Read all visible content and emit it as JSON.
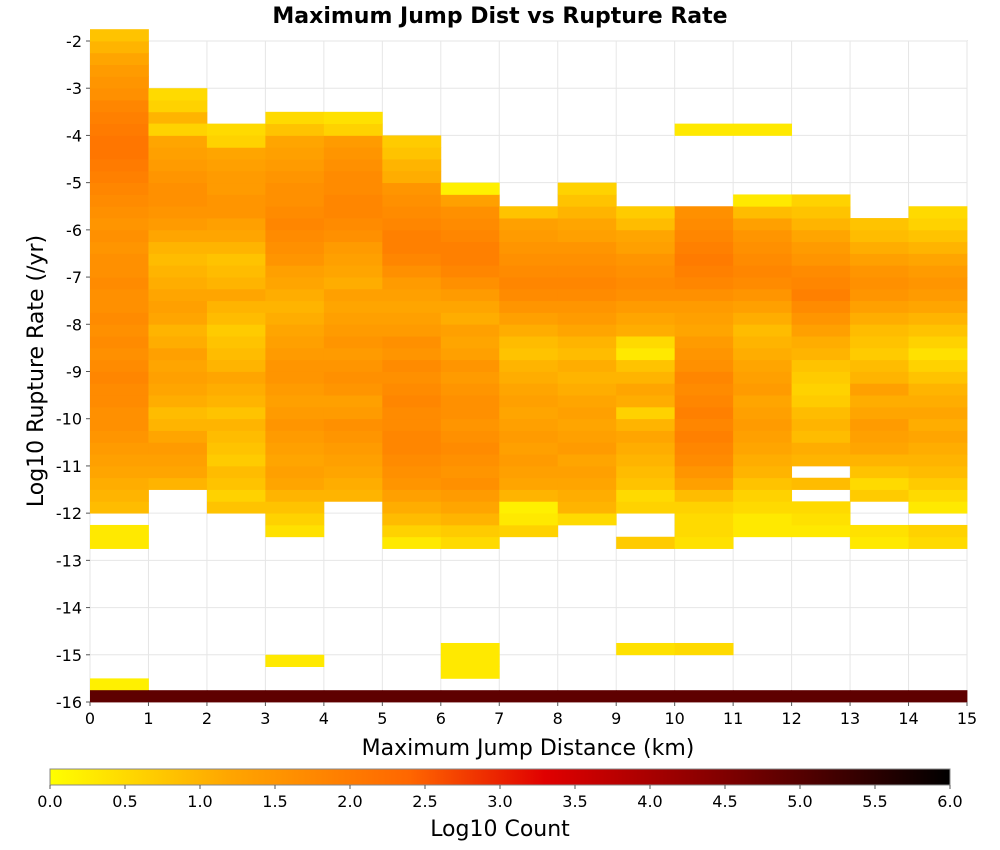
{
  "chart_data": {
    "type": "heatmap",
    "title": "Maximum Jump Dist vs Rupture Rate",
    "xlabel": "Maximum Jump Distance (km)",
    "ylabel": "Log10 Rupture Rate (/yr)",
    "xlim": [
      0,
      15
    ],
    "ylim": [
      -16,
      -2
    ],
    "x_bin_width": 1,
    "y_bin_height": 0.25,
    "x_ticks": [
      "0",
      "1",
      "2",
      "3",
      "4",
      "5",
      "6",
      "7",
      "8",
      "9",
      "10",
      "11",
      "12",
      "13",
      "14",
      "15"
    ],
    "y_ticks": [
      "-2",
      "-3",
      "-4",
      "-5",
      "-6",
      "-7",
      "-8",
      "-9",
      "-10",
      "-11",
      "-12",
      "-13",
      "-14",
      "-15",
      "-16"
    ],
    "grid": true,
    "colorbar": {
      "label": "Log10 Count",
      "min": 0,
      "max": 6,
      "ticks": [
        "0.0",
        "0.5",
        "1.0",
        "1.5",
        "2.0",
        "2.5",
        "3.0",
        "3.5",
        "4.0",
        "4.5",
        "5.0",
        "5.5",
        "6.0"
      ],
      "colors": [
        "#ffff00",
        "#ffa500",
        "#ff6600",
        "#e00000",
        "#800000",
        "#000000"
      ],
      "placement": "bottom"
    },
    "columns": [
      {
        "x": 0,
        "start": -12.0,
        "values": [
          0.9,
          1.0,
          1.1,
          1.2,
          1.3,
          1.4,
          1.5,
          1.6,
          1.6,
          1.7,
          1.7,
          1.8,
          1.7,
          1.6,
          1.7,
          1.6,
          1.7,
          1.6,
          1.6,
          1.7,
          1.6,
          1.6,
          1.5,
          1.6,
          1.5,
          1.6,
          1.7,
          1.8,
          1.9,
          2.0,
          2.1,
          2.1,
          2.0,
          1.9,
          1.8,
          1.6,
          1.5,
          1.4,
          1.2,
          1.0,
          0.8
        ],
        "extra": [
          {
            "y": -12.5,
            "v": 0.3
          },
          {
            "y": -12.75,
            "v": 0.3
          },
          {
            "y": -15.75,
            "v": 0.2
          }
        ]
      },
      {
        "x": 1,
        "start": -11.5,
        "values": [
          1.0,
          1.2,
          1.3,
          1.4,
          1.2,
          1.0,
          0.9,
          1.1,
          1.2,
          1.3,
          1.2,
          1.3,
          1.1,
          1.0,
          1.2,
          1.3,
          1.2,
          1.1,
          1.0,
          0.9,
          1.0,
          1.2,
          1.4,
          1.5,
          1.6,
          1.6,
          1.5,
          1.4,
          1.3,
          1.2,
          1.1,
          1.0,
          0.6,
          0.5
        ],
        "extra": [
          {
            "y": -4.0,
            "v": 0.6
          }
        ]
      },
      {
        "x": 2,
        "start": -12.0,
        "values": [
          0.8,
          0.6,
          0.8,
          0.9,
          0.7,
          0.8,
          0.9,
          1.0,
          0.8,
          1.0,
          1.1,
          1.2,
          1.0,
          0.9,
          0.8,
          0.7,
          0.9,
          1.0,
          1.2,
          1.0,
          0.9,
          0.8,
          1.0,
          1.2,
          1.3,
          1.5,
          1.5,
          1.4,
          1.4,
          1.3,
          1.2,
          0.6,
          0.5
        ],
        "extra": [
          {
            "y": -4.25,
            "v": 0.6
          }
        ]
      },
      {
        "x": 3,
        "start": -12.5,
        "values": [
          0.4,
          0.6,
          0.8,
          1.0,
          1.2,
          1.3,
          1.2,
          1.3,
          1.4,
          1.5,
          1.4,
          1.3,
          1.4,
          1.5,
          1.5,
          1.4,
          1.3,
          1.2,
          1.1,
          1.0,
          1.1,
          1.2,
          1.3,
          1.5,
          1.6,
          1.7,
          1.8,
          1.7,
          1.6,
          1.6,
          1.5,
          1.4,
          1.3,
          1.2,
          0.8,
          0.5
        ],
        "extra": [
          {
            "y": -15.25,
            "v": 0.3
          }
        ]
      },
      {
        "x": 4,
        "start": -11.75,
        "values": [
          1.0,
          1.1,
          1.2,
          1.3,
          1.4,
          1.5,
          1.6,
          1.4,
          1.3,
          1.5,
          1.6,
          1.5,
          1.4,
          1.5,
          1.4,
          1.3,
          1.2,
          1.3,
          1.1,
          1.2,
          1.3,
          1.4,
          1.6,
          1.7,
          1.8,
          1.8,
          1.7,
          1.7,
          1.6,
          1.5,
          1.4,
          0.6,
          0.4
        ],
        "extra": []
      },
      {
        "x": 5,
        "start": -12.75,
        "values": [
          0.3,
          0.6,
          0.9,
          1.1,
          1.3,
          1.5,
          1.6,
          1.7,
          1.8,
          1.8,
          1.7,
          1.7,
          1.8,
          1.7,
          1.6,
          1.7,
          1.5,
          1.6,
          1.4,
          1.3,
          1.2,
          1.3,
          1.4,
          1.6,
          1.8,
          1.9,
          1.9,
          1.8,
          1.7,
          1.6,
          1.5,
          1.1,
          1.0,
          0.8,
          0.7
        ],
        "extra": []
      },
      {
        "x": 6,
        "start": -12.75,
        "values": [
          0.5,
          0.7,
          1.0,
          1.2,
          1.4,
          1.6,
          1.5,
          1.6,
          1.7,
          1.6,
          1.5,
          1.6,
          1.6,
          1.5,
          1.4,
          1.5,
          1.3,
          1.2,
          1.3,
          1.1,
          1.2,
          1.4,
          1.6,
          1.8,
          1.9,
          1.9,
          1.8,
          1.7,
          1.6,
          1.3,
          0.2
        ],
        "extra": [
          {
            "y": -15.0,
            "v": 0.3
          },
          {
            "y": -15.25,
            "v": 0.3
          },
          {
            "y": -15.5,
            "v": 0.3
          }
        ]
      },
      {
        "x": 7,
        "start": -12.5,
        "values": [
          0.6,
          0.3,
          0.2,
          1.0,
          1.2,
          1.3,
          1.4,
          1.3,
          1.4,
          1.3,
          1.2,
          1.3,
          1.2,
          1.1,
          1.0,
          0.8,
          0.9,
          1.1,
          1.3,
          1.5,
          1.7,
          1.8,
          1.7,
          1.6,
          1.5,
          1.4,
          1.3,
          0.8
        ],
        "extra": []
      },
      {
        "x": 8,
        "start": -12.25,
        "values": [
          0.5,
          1.0,
          1.1,
          1.2,
          1.3,
          1.2,
          1.4,
          1.3,
          1.2,
          1.3,
          1.2,
          1.1,
          1.0,
          1.1,
          0.9,
          1.0,
          1.2,
          1.4,
          1.5,
          1.7,
          1.8,
          1.7,
          1.6,
          1.5,
          1.3,
          1.2,
          1.0,
          0.8,
          0.6
        ],
        "extra": []
      },
      {
        "x": 9,
        "start": -12.75,
        "values": [
          0.7,
          0.0,
          0.0,
          0.6,
          0.5,
          0.8,
          0.9,
          1.0,
          1.1,
          1.2,
          1.0,
          0.6,
          1.1,
          1.2,
          1.0,
          0.8,
          0.3,
          0.5,
          1.1,
          1.2,
          1.4,
          1.6,
          1.7,
          1.6,
          1.5,
          1.3,
          1.2,
          0.9,
          0.7
        ],
        "extra": [
          {
            "y": -15.0,
            "v": 0.4
          }
        ]
      },
      {
        "x": 10,
        "start": -12.75,
        "values": [
          0.4,
          0.5,
          0.5,
          0.6,
          0.9,
          1.3,
          1.5,
          1.7,
          1.8,
          1.9,
          1.8,
          1.9,
          1.8,
          1.7,
          1.8,
          1.6,
          1.5,
          1.4,
          1.2,
          1.3,
          1.4,
          1.6,
          1.8,
          1.9,
          2.0,
          1.9,
          1.8,
          1.7,
          1.6
        ],
        "extra": [
          {
            "y": -4.0,
            "v": 0.3
          },
          {
            "y": -15.0,
            "v": 0.5
          }
        ]
      },
      {
        "x": 11,
        "start": -12.5,
        "values": [
          0.3,
          0.3,
          0.5,
          0.6,
          0.8,
          1.0,
          1.1,
          1.2,
          1.3,
          1.4,
          1.3,
          1.2,
          1.4,
          1.3,
          1.2,
          1.1,
          1.0,
          0.9,
          1.1,
          1.3,
          1.5,
          1.7,
          1.8,
          1.7,
          1.6,
          1.5,
          1.3,
          0.9,
          0.3
        ],
        "extra": [
          {
            "y": -4.0,
            "v": 0.3
          }
        ]
      },
      {
        "x": 12,
        "start": -12.5,
        "values": [
          0.3,
          0.4,
          0.5,
          0.0,
          0.9,
          0.0,
          1.0,
          1.1,
          0.9,
          1.0,
          0.9,
          0.7,
          0.6,
          0.7,
          0.8,
          1.0,
          1.1,
          1.3,
          1.5,
          1.7,
          1.9,
          1.8,
          1.7,
          1.5,
          1.4,
          1.2,
          1.0,
          0.8,
          0.6
        ],
        "extra": []
      },
      {
        "x": 13,
        "start": -12.75,
        "values": [
          0.3,
          0.4,
          0.0,
          0.0,
          0.7,
          0.5,
          0.8,
          1.0,
          1.2,
          1.3,
          1.4,
          1.2,
          1.1,
          1.3,
          1.0,
          0.9,
          0.7,
          0.8,
          0.9,
          1.1,
          1.3,
          1.5,
          1.6,
          1.5,
          1.3,
          1.1,
          0.9,
          0.8
        ],
        "extra": []
      },
      {
        "x": 14,
        "start": -12.75,
        "values": [
          0.5,
          0.6,
          0.0,
          0.3,
          0.5,
          0.7,
          0.9,
          1.0,
          1.1,
          1.2,
          1.1,
          1.2,
          1.1,
          1.0,
          0.8,
          0.6,
          0.4,
          0.6,
          0.8,
          1.0,
          1.2,
          1.4,
          1.5,
          1.4,
          1.2,
          1.0,
          0.8,
          0.6,
          0.5
        ],
        "extra": []
      }
    ],
    "bottom_row": {
      "y": -16.0,
      "values": [
        4.9,
        4.9,
        4.9,
        4.9,
        4.9,
        4.9,
        4.9,
        4.9,
        4.9,
        4.9,
        4.9,
        4.9,
        4.9,
        4.9,
        4.9
      ]
    }
  }
}
